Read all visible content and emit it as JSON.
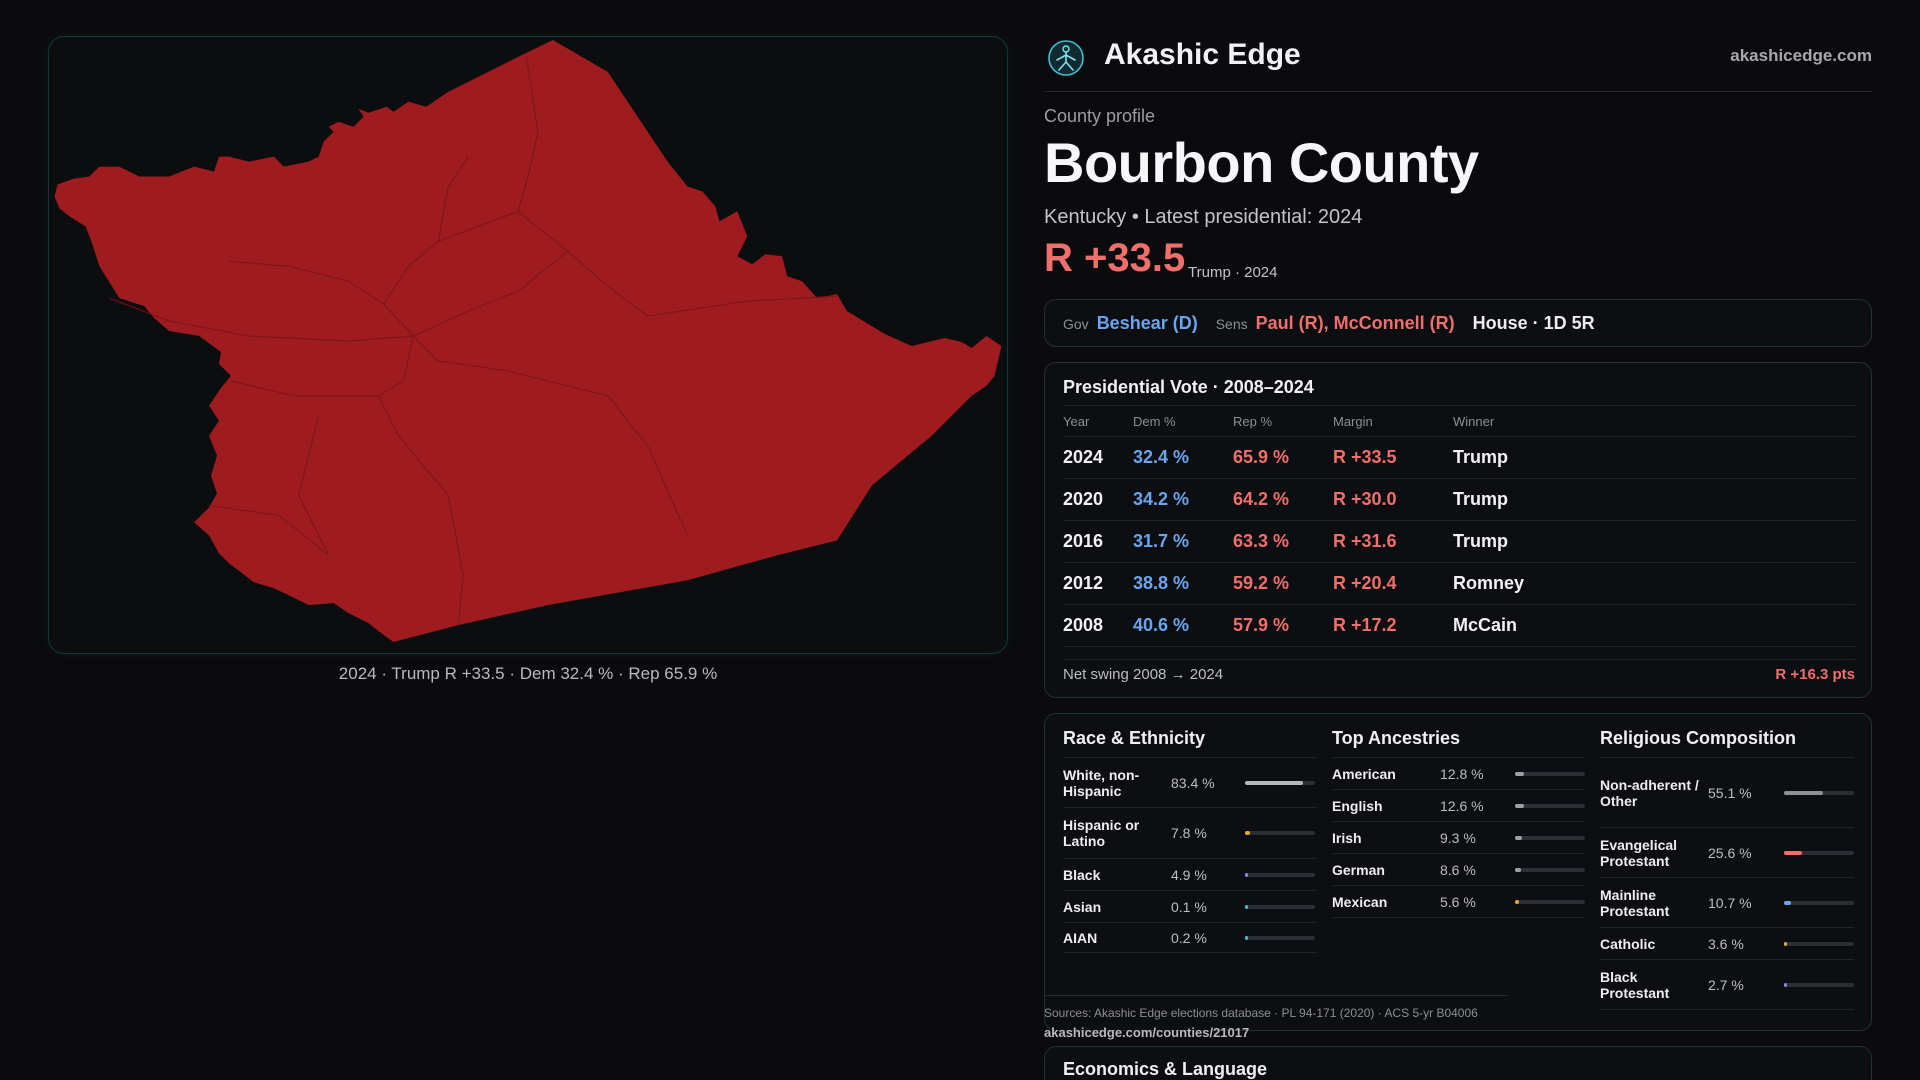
{
  "map": {
    "caption": "2024 · Trump R +33.5 · Dem 32.4 % · Rep 65.9 %",
    "fill_color": "#9e1c20"
  },
  "brand": {
    "name": "Akashic Edge",
    "url": "akashicedge.com",
    "logo_icon": "akashic-logo-icon"
  },
  "profile": {
    "kicker": "County profile",
    "title": "Bourbon County",
    "subline": "Kentucky • Latest presidential: 2024",
    "margin": "R +33.5",
    "margin_note": "Trump · 2024"
  },
  "officials": {
    "gov_label": "Gov",
    "gov_value": "Beshear (D)",
    "sens_label": "Sens",
    "sens_value": "Paul (R), McConnell (R)",
    "house": "House · 1D 5R"
  },
  "presidential": {
    "title": "Presidential Vote · 2008–2024",
    "headers": {
      "year": "Year",
      "dem": "Dem %",
      "rep": "Rep %",
      "margin": "Margin",
      "winner": "Winner"
    },
    "rows": [
      {
        "year": "2024",
        "dem": "32.4 %",
        "rep": "65.9 %",
        "margin": "R +33.5",
        "winner": "Trump"
      },
      {
        "year": "2020",
        "dem": "34.2 %",
        "rep": "64.2 %",
        "margin": "R +30.0",
        "winner": "Trump"
      },
      {
        "year": "2016",
        "dem": "31.7 %",
        "rep": "63.3 %",
        "margin": "R +31.6",
        "winner": "Trump"
      },
      {
        "year": "2012",
        "dem": "38.8 %",
        "rep": "59.2 %",
        "margin": "R +20.4",
        "winner": "Romney"
      },
      {
        "year": "2008",
        "dem": "40.6 %",
        "rep": "57.9 %",
        "margin": "R +17.2",
        "winner": "McCain"
      }
    ],
    "swing_label": "Net swing 2008 → 2024",
    "swing_value": "R +16.3 pts"
  },
  "race": {
    "title": "Race & Ethnicity",
    "rows": [
      {
        "label": "White, non-Hispanic",
        "value": "83.4 %",
        "share": 0.834,
        "color": "#b4b6bc"
      },
      {
        "label": "Hispanic or Latino",
        "value": "7.8 %",
        "share": 0.078,
        "color": "#e8a33a"
      },
      {
        "label": "Black",
        "value": "4.9 %",
        "share": 0.049,
        "color": "#8d7fe6"
      },
      {
        "label": "Asian",
        "value": "0.1 %",
        "share": 0.001,
        "color": "#4fb3c9"
      },
      {
        "label": "AIAN",
        "value": "0.2 %",
        "share": 0.002,
        "color": "#4fb3c9"
      }
    ]
  },
  "ancestries": {
    "title": "Top Ancestries",
    "rows": [
      {
        "label": "American",
        "value": "12.8 %",
        "share": 0.128,
        "color": "#9ea0a6"
      },
      {
        "label": "English",
        "value": "12.6 %",
        "share": 0.126,
        "color": "#9ea0a6"
      },
      {
        "label": "Irish",
        "value": "9.3 %",
        "share": 0.093,
        "color": "#9ea0a6"
      },
      {
        "label": "German",
        "value": "8.6 %",
        "share": 0.086,
        "color": "#9ea0a6"
      },
      {
        "label": "Mexican",
        "value": "5.6 %",
        "share": 0.056,
        "color": "#e8a33a"
      }
    ]
  },
  "religion": {
    "title": "Religious Composition",
    "rows": [
      {
        "label": "Non-adherent / Other",
        "value": "55.1 %",
        "share": 0.551,
        "color": "#8d9097"
      },
      {
        "label": "Evangelical Protestant",
        "value": "25.6 %",
        "share": 0.256,
        "color": "#ef6f6c"
      },
      {
        "label": "Mainline Protestant",
        "value": "10.7 %",
        "share": 0.107,
        "color": "#6aa5f0"
      },
      {
        "label": "Catholic",
        "value": "3.6 %",
        "share": 0.036,
        "color": "#e8a33a"
      },
      {
        "label": "Black Protestant",
        "value": "2.7 %",
        "share": 0.027,
        "color": "#8d7fe6"
      }
    ]
  },
  "sources": {
    "text": "Sources: Akashic Edge elections database · PL 94-171 (2020) · ACS 5-yr B04006",
    "url": "akashicedge.com/counties/21017"
  },
  "economics": {
    "title": "Economics & Language"
  }
}
